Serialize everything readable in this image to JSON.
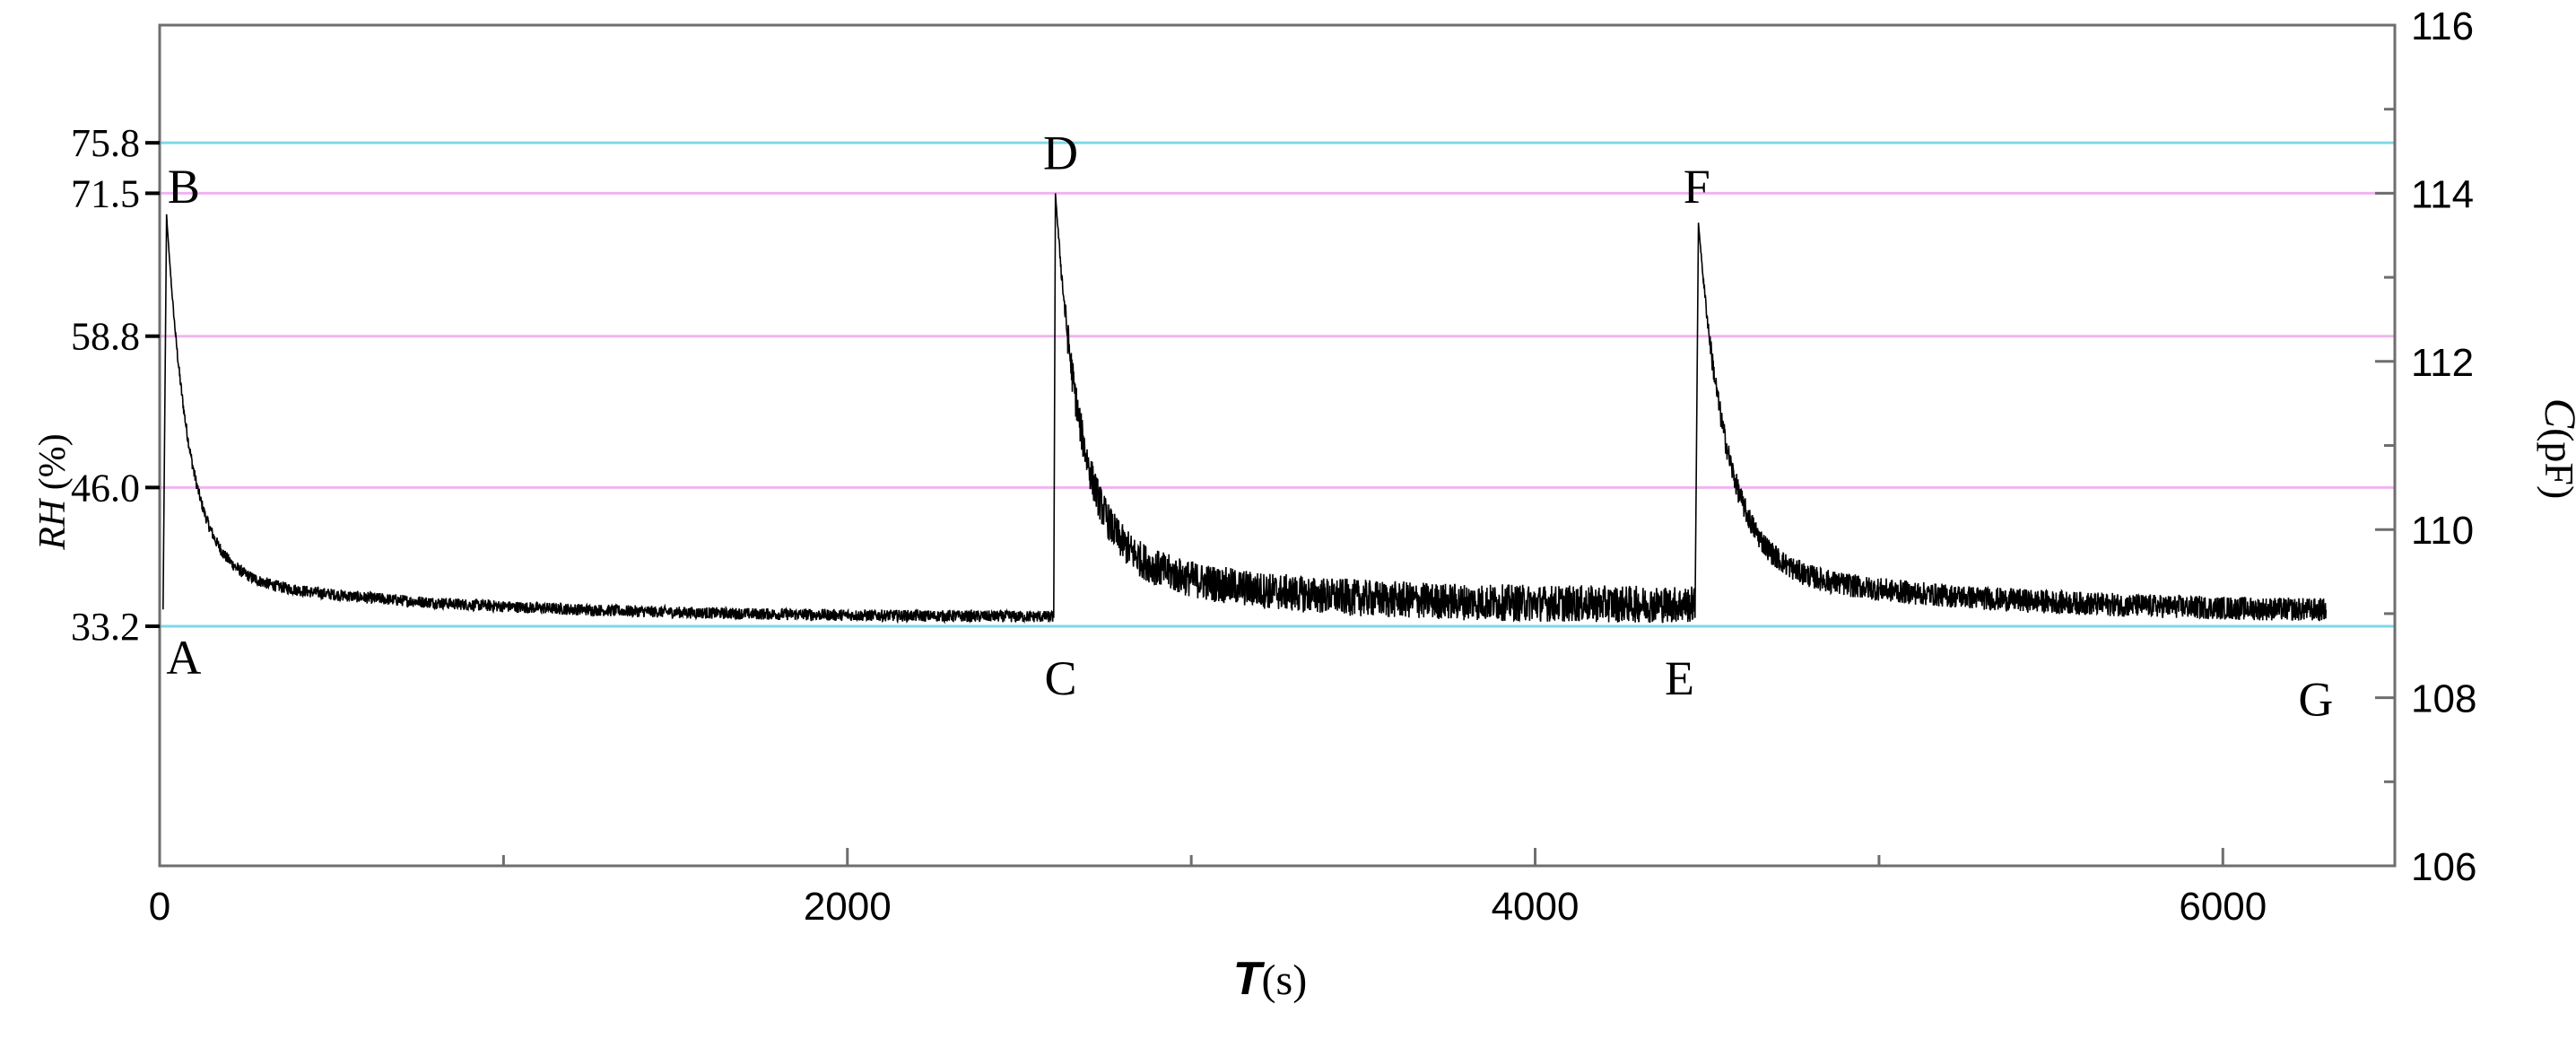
{
  "chart_data": {
    "type": "line",
    "x_axis": {
      "label_main": "T",
      "label_unit": "(s)",
      "range": [
        0,
        6500
      ],
      "major_ticks": [
        0,
        2000,
        4000,
        6000
      ],
      "minor_ticks": [
        1000,
        3000,
        5000
      ],
      "tick_labels": [
        "0",
        "2000",
        "4000",
        "6000"
      ]
    },
    "y_left": {
      "label_main": "RH",
      "label_unit": " (%)",
      "tick_values": [
        33.2,
        46.0,
        58.8,
        71.5,
        75.8
      ],
      "tick_labels": [
        "33.2",
        "46.0",
        "58.8",
        "71.5",
        "75.8"
      ]
    },
    "y_right": {
      "label_main": "C",
      "label_unit": "(pF)",
      "range": [
        106,
        116
      ],
      "major_ticks": [
        106,
        108,
        110,
        112,
        114,
        116
      ],
      "tick_labels": [
        "106",
        "108",
        "110",
        "112",
        "114",
        "116"
      ],
      "minor_ticks": [
        107,
        109,
        111,
        113,
        115
      ]
    },
    "reference_lines": [
      {
        "rh": 75.8,
        "capacitance_pf": 114.6,
        "color": "#7fd8e8"
      },
      {
        "rh": 71.5,
        "capacitance_pf": 114.0,
        "color": "#f0b4f0"
      },
      {
        "rh": 58.8,
        "capacitance_pf": 112.3,
        "color": "#f0b4f0"
      },
      {
        "rh": 46.0,
        "capacitance_pf": 110.5,
        "color": "#f0b4f0"
      },
      {
        "rh": 33.2,
        "capacitance_pf": 108.85,
        "color": "#7fd8e8"
      }
    ],
    "point_labels": [
      {
        "text": "A",
        "t": 70,
        "c": 108.5
      },
      {
        "text": "B",
        "t": 70,
        "c": 114.1
      },
      {
        "text": "C",
        "t": 2620,
        "c": 108.25
      },
      {
        "text": "D",
        "t": 2620,
        "c": 114.5
      },
      {
        "text": "E",
        "t": 4420,
        "c": 108.25
      },
      {
        "text": "F",
        "t": 4470,
        "c": 114.1
      },
      {
        "text": "G",
        "t": 6270,
        "c": 108.0
      }
    ],
    "series": [
      {
        "line_color": "#000000",
        "segments": [
          {
            "t_start": 10,
            "t_peak": 20,
            "t_end": 2600,
            "c_base": 109.05,
            "c_peak": 113.75,
            "c_floor": 108.95,
            "tau": 65,
            "slow_amp": 0.55,
            "slow_tau": 700,
            "noise": 0.07
          },
          {
            "t_start": 2600,
            "t_peak": 2605,
            "t_end": 4465,
            "c_base": 108.95,
            "c_peak": 114.0,
            "c_floor": 109.1,
            "tau": 70,
            "slow_amp": 0.8,
            "slow_tau": 400,
            "noise": 0.22
          },
          {
            "t_start": 4465,
            "t_peak": 4475,
            "t_end": 6300,
            "c_base": 108.95,
            "c_peak": 113.65,
            "c_floor": 109.0,
            "tau": 80,
            "slow_amp": 0.6,
            "slow_tau": 700,
            "noise": 0.14
          }
        ]
      }
    ]
  }
}
